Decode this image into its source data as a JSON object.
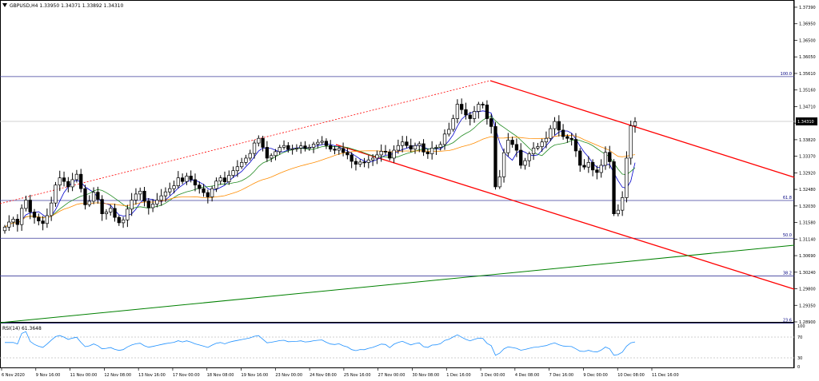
{
  "header": {
    "symbol_line": "GBPUSD,H4  1.33950 1.34371 1.33892 1.34310"
  },
  "rsi_panel": {
    "label": "RSI(14) 61.3648",
    "levels": [
      70,
      30
    ],
    "ticks": [
      "100",
      "70",
      "30",
      "0"
    ]
  },
  "price_axis": {
    "ticks": [
      "1.37390",
      "1.36950",
      "1.36500",
      "1.36050",
      "1.35610",
      "1.35160",
      "1.34710",
      "1.34310",
      "1.33820",
      "1.33370",
      "1.32920",
      "1.32480",
      "1.32030",
      "1.31580",
      "1.31140",
      "1.30690",
      "1.30240",
      "1.29800",
      "1.29350",
      "1.28900"
    ],
    "current_price": "1.34310"
  },
  "fib_levels": [
    {
      "label": "100.0",
      "price": 1.3557
    },
    {
      "label": "61.8",
      "price": 1.3212
    },
    {
      "label": "50.0",
      "price": 1.3107
    },
    {
      "label": "38.2",
      "price": 1.3002
    },
    {
      "label": "23.6",
      "price": 1.2871
    }
  ],
  "time_axis": {
    "labels": [
      "6 Nov 2020",
      "9 Nov 16:00",
      "11 Nov 00:00",
      "12 Nov 08:00",
      "13 Nov 16:00",
      "17 Nov 00:00",
      "18 Nov 08:00",
      "19 Nov 16:00",
      "23 Nov 00:00",
      "24 Nov 08:00",
      "25 Nov 16:00",
      "27 Nov 00:00",
      "30 Nov 08:00",
      "1 Dec 16:00",
      "3 Dec 00:00",
      "4 Dec 08:00",
      "7 Dec 16:00",
      "9 Dec 00:00",
      "10 Dec 08:00",
      "11 Dec 16:00"
    ]
  },
  "chart_data": {
    "type": "candlestick",
    "symbol": "GBPUSD",
    "timeframe": "H4",
    "ylim": [
      1.2874,
      1.3768
    ],
    "current_price": 1.3431,
    "rsi_current": 61.3648,
    "closes": [
      1.3138,
      1.3152,
      1.316,
      1.3145,
      1.319,
      1.3213,
      1.318,
      1.3165,
      1.3155,
      1.3148,
      1.317,
      1.3205,
      1.3255,
      1.3275,
      1.3265,
      1.325,
      1.327,
      1.3285,
      1.3245,
      1.32,
      1.321,
      1.3235,
      1.3215,
      1.3175,
      1.318,
      1.319,
      1.3165,
      1.315,
      1.3158,
      1.3188,
      1.3213,
      1.323,
      1.3238,
      1.321,
      1.3192,
      1.3202,
      1.3213,
      1.3225,
      1.3236,
      1.3245,
      1.3253,
      1.3275,
      1.3265,
      1.328,
      1.327,
      1.3255,
      1.3245,
      1.3234,
      1.3222,
      1.3245,
      1.3266,
      1.3275,
      1.3264,
      1.3282,
      1.3295,
      1.3306,
      1.3318,
      1.333,
      1.3343,
      1.3372,
      1.3385,
      1.336,
      1.333,
      1.3337,
      1.3348,
      1.336,
      1.3365,
      1.3354,
      1.3356,
      1.3358,
      1.3364,
      1.3357,
      1.336,
      1.3369,
      1.3374,
      1.3377,
      1.3365,
      1.3355,
      1.3352,
      1.3357,
      1.3346,
      1.3339,
      1.3321,
      1.3313,
      1.3319,
      1.3318,
      1.3325,
      1.333,
      1.3339,
      1.3349,
      1.3347,
      1.333,
      1.3352,
      1.3365,
      1.3375,
      1.3365,
      1.3355,
      1.3365,
      1.337,
      1.3347,
      1.3342,
      1.3358,
      1.336,
      1.3368,
      1.3397,
      1.341,
      1.344,
      1.348,
      1.3465,
      1.345,
      1.344,
      1.346,
      1.348,
      1.3478,
      1.344,
      1.3418,
      1.325,
      1.3278,
      1.3345,
      1.338,
      1.3368,
      1.3352,
      1.331,
      1.3323,
      1.3342,
      1.3358,
      1.3362,
      1.3375,
      1.3385,
      1.3412,
      1.3432,
      1.3408,
      1.339,
      1.3385,
      1.3382,
      1.335,
      1.331,
      1.3305,
      1.3318,
      1.3297,
      1.329,
      1.331,
      1.3346,
      1.332,
      1.3175,
      1.3185,
      1.322,
      1.333,
      1.342,
      1.3431
    ]
  }
}
